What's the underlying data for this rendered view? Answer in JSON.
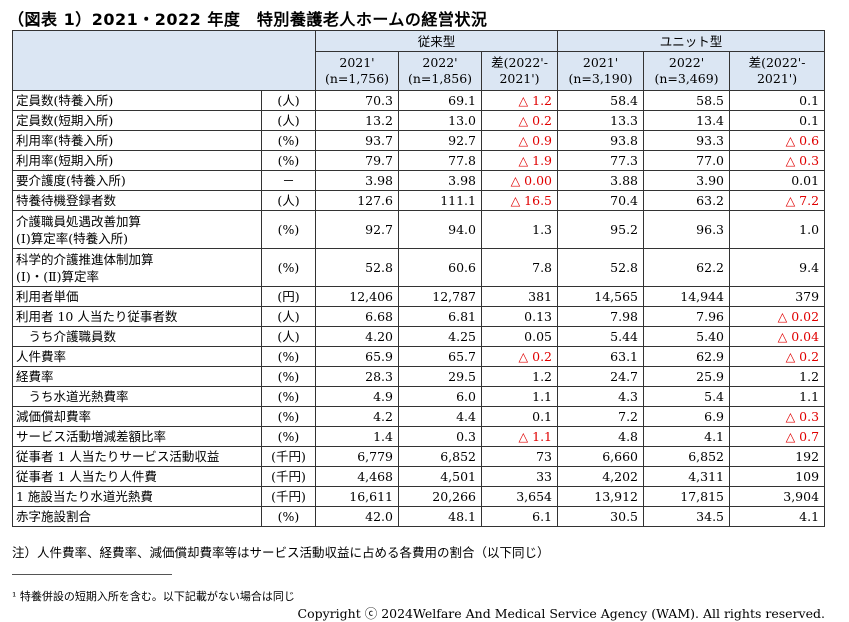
{
  "title": "（図表 1）2021・2022 年度　特別養護老人ホームの経営状況",
  "header": {
    "group_conventional": "従来型",
    "group_unit": "ユニット型",
    "columns": [
      [
        "2021'",
        "(n=1,756)"
      ],
      [
        "2022'",
        "(n=1,856)"
      ],
      [
        "差(2022'-",
        "2021')"
      ],
      [
        "2021'",
        "(n=3,190)"
      ],
      [
        "2022'",
        "(n=3,469)"
      ],
      [
        "差(2022'-",
        "2021')"
      ]
    ]
  },
  "rows": [
    {
      "label": [
        "定員数(特養入所)"
      ],
      "unit": "(人)",
      "values": [
        "70.3",
        "69.1",
        "△ 1.2",
        "58.4",
        "58.5",
        "0.1"
      ]
    },
    {
      "label": [
        "定員数(短期入所)"
      ],
      "unit": "(人)",
      "values": [
        "13.2",
        "13.0",
        "△ 0.2",
        "13.3",
        "13.4",
        "0.1"
      ]
    },
    {
      "label": [
        "利用率(特養入所)"
      ],
      "unit": "(%)",
      "values": [
        "93.7",
        "92.7",
        "△ 0.9",
        "93.8",
        "93.3",
        "△ 0.6"
      ]
    },
    {
      "label": [
        "利用率(短期入所)"
      ],
      "unit": "(%)",
      "values": [
        "79.7",
        "77.8",
        "△ 1.9",
        "77.3",
        "77.0",
        "△ 0.3"
      ]
    },
    {
      "label": [
        "要介護度(特養入所)"
      ],
      "unit": "－",
      "values": [
        "3.98",
        "3.98",
        "△ 0.00",
        "3.88",
        "3.90",
        "0.01"
      ]
    },
    {
      "label": [
        "特養待機登録者数"
      ],
      "unit": "(人)",
      "values": [
        "127.6",
        "111.1",
        "△ 16.5",
        "70.4",
        "63.2",
        "△ 7.2"
      ]
    },
    {
      "label": [
        "介護職員処遇改善加算",
        "(Ⅰ)算定率(特養入所)"
      ],
      "unit": "(%)",
      "values": [
        "92.7",
        "94.0",
        "1.3",
        "95.2",
        "96.3",
        "1.0"
      ]
    },
    {
      "label": [
        "科学的介護推進体制加算",
        "(Ⅰ)・(Ⅱ)算定率"
      ],
      "unit": "(%)",
      "values": [
        "52.8",
        "60.6",
        "7.8",
        "52.8",
        "62.2",
        "9.4"
      ]
    },
    {
      "label": [
        "利用者単価"
      ],
      "unit": "(円)",
      "values": [
        "12,406",
        "12,787",
        "381",
        "14,565",
        "14,944",
        "379"
      ]
    },
    {
      "label": [
        "利用者 10 人当たり従事者数"
      ],
      "unit": "(人)",
      "values": [
        "6.68",
        "6.81",
        "0.13",
        "7.98",
        "7.96",
        "△ 0.02"
      ]
    },
    {
      "label": [
        "　うち介護職員数"
      ],
      "unit": "(人)",
      "values": [
        "4.20",
        "4.25",
        "0.05",
        "5.44",
        "5.40",
        "△ 0.04"
      ]
    },
    {
      "label": [
        "人件費率"
      ],
      "unit": "(%)",
      "values": [
        "65.9",
        "65.7",
        "△ 0.2",
        "63.1",
        "62.9",
        "△ 0.2"
      ]
    },
    {
      "label": [
        "経費率"
      ],
      "unit": "(%)",
      "values": [
        "28.3",
        "29.5",
        "1.2",
        "24.7",
        "25.9",
        "1.2"
      ]
    },
    {
      "label": [
        "　うち水道光熱費率"
      ],
      "unit": "(%)",
      "values": [
        "4.9",
        "6.0",
        "1.1",
        "4.3",
        "5.4",
        "1.1"
      ]
    },
    {
      "label": [
        "減価償却費率"
      ],
      "unit": "(%)",
      "values": [
        "4.2",
        "4.4",
        "0.1",
        "7.2",
        "6.9",
        "△ 0.3"
      ]
    },
    {
      "label": [
        "サービス活動増減差額比率"
      ],
      "unit": "(%)",
      "values": [
        "1.4",
        "0.3",
        "△ 1.1",
        "4.8",
        "4.1",
        "△ 0.7"
      ]
    },
    {
      "label": [
        "従事者 1 人当たりサービス活動収益"
      ],
      "unit": "(千円)",
      "values": [
        "6,779",
        "6,852",
        "73",
        "6,660",
        "6,852",
        "192"
      ]
    },
    {
      "label": [
        "従事者 1 人当たり人件費"
      ],
      "unit": "(千円)",
      "values": [
        "4,468",
        "4,501",
        "33",
        "4,202",
        "4,311",
        "109"
      ]
    },
    {
      "label": [
        "1 施設当たり水道光熱費"
      ],
      "unit": "(千円)",
      "values": [
        "16,611",
        "20,266",
        "3,654",
        "13,912",
        "17,815",
        "3,904"
      ]
    },
    {
      "label": [
        "赤字施設割合"
      ],
      "unit": "(%)",
      "values": [
        "42.0",
        "48.1",
        "6.1",
        "30.5",
        "34.5",
        "4.1"
      ]
    }
  ],
  "note": "注）人件費率、経費率、減価償却費率等はサービス活動収益に占める各費用の割合（以下同じ）",
  "footnote": "¹ 特養併設の短期入所を含む。以下記載がない場合は同じ",
  "copyright": "Copyright ⓒ 2024Welfare And Medical Service Agency (WAM). All rights reserved.",
  "colors": {
    "header_bg": "#dbe6f3",
    "negative": "#e00000"
  }
}
